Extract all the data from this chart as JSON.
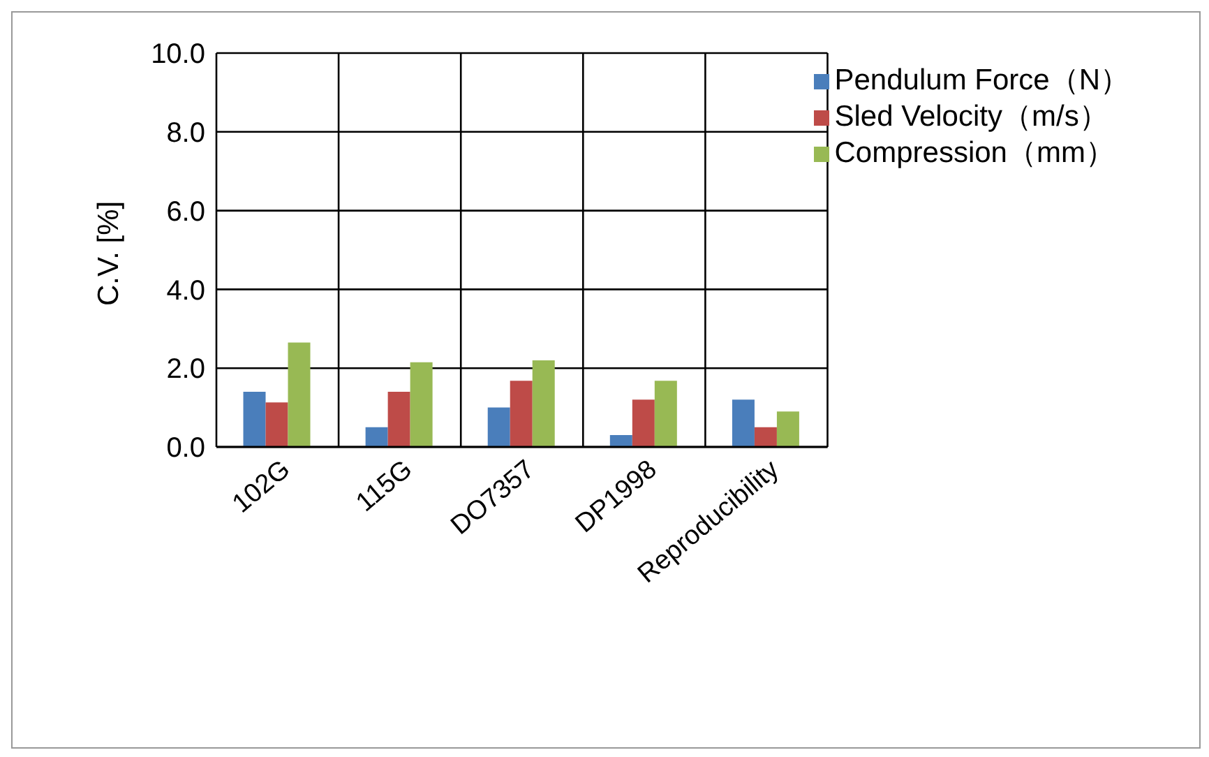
{
  "chart_data": {
    "type": "bar",
    "ylabel": "C.V. [%]",
    "categories": [
      "102G",
      "115G",
      "DO7357",
      "DP1998",
      "Reproducibility"
    ],
    "series": [
      {
        "name": "Pendulum Force（N）",
        "color": "#4a7ebb",
        "values": [
          1.4,
          0.5,
          1.0,
          0.3,
          1.2
        ]
      },
      {
        "name": "Sled Velocity（m/s）",
        "color": "#be4b48",
        "values": [
          1.13,
          1.4,
          1.68,
          1.2,
          0.5
        ]
      },
      {
        "name": "Compression（mm）",
        "color": "#98b954",
        "values": [
          2.65,
          2.15,
          2.2,
          1.68,
          0.9
        ]
      }
    ],
    "ylim": [
      0,
      10
    ],
    "yticks": [
      {
        "value": 0,
        "label": "0.0"
      },
      {
        "value": 2,
        "label": "2.0"
      },
      {
        "value": 4,
        "label": "4.0"
      },
      {
        "value": 6,
        "label": "6.0"
      },
      {
        "value": 8,
        "label": "8.0"
      },
      {
        "value": 10,
        "label": "10.0"
      }
    ],
    "grid": true,
    "legend": "top right"
  }
}
